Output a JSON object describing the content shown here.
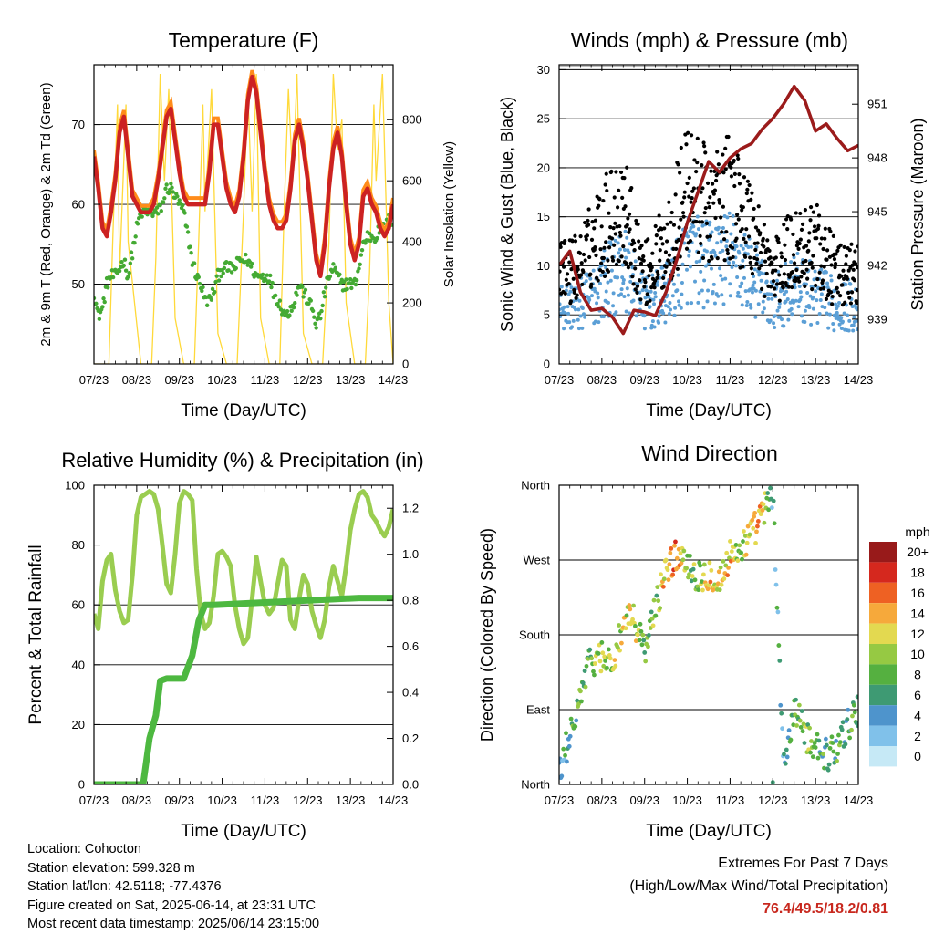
{
  "panels": {
    "temperature": {
      "title": "Temperature (F)",
      "left_axis_label": "2m & 9m T (Red, Orange) & 2m Td (Green)",
      "right_axis_label": "Solar Insolation (Yellow)",
      "x_axis_label": "Time (Day/UTC)"
    },
    "winds": {
      "title": "Winds (mph) & Pressure (mb)",
      "left_axis_label": "Sonic Wind & Gust (Blue, Black)",
      "right_axis_label": "Station Pressure (Maroon)",
      "x_axis_label": "Time (Day/UTC)"
    },
    "humidity": {
      "title": "Relative Humidity (%) & Precipitation (in)",
      "left_axis_label": "Percent & Total Rainfall",
      "x_axis_label": "Time (Day/UTC)"
    },
    "direction": {
      "title": "Wind Direction",
      "left_axis_label": "Direction (Colored By Speed)",
      "x_axis_label": "Time (Day/UTC)",
      "colorbar_title": "mph"
    }
  },
  "info": {
    "location": "Location: Cohocton",
    "elevation": "Station elevation: 599.328 m",
    "latlon": "Station lat/lon: 42.5118; -77.4376",
    "created": "Figure created on Sat, 2025-06-14, at 23:31 UTC",
    "recent": "Most recent data timestamp: 2025/06/14 23:15:00"
  },
  "extremes": {
    "line1": "Extremes For Past 7 Days",
    "line2": "(High/Low/Max Wind/Total Precipitation)",
    "values": "76.4/49.5/18.2/0.81"
  },
  "colors": {
    "temp2m": "#cc2222",
    "temp9m": "#ff8c1a",
    "dewpoint": "#44aa33",
    "solar": "#ffd93a",
    "wind": "#5b9fd6",
    "gust": "#000000",
    "pressure": "#9b1b1b",
    "rh": "#9acd50",
    "precip": "#4db840",
    "extremes": "#c8281e"
  },
  "chart_data": [
    {
      "type": "line",
      "name": "temperature",
      "x_ticks": [
        "07/23",
        "08/23",
        "09/23",
        "10/23",
        "11/23",
        "12/23",
        "13/23",
        "14/23"
      ],
      "ylim_left": [
        40,
        77.5
      ],
      "yticks_left": [
        50,
        60,
        70
      ],
      "ylim_right": [
        0,
        980
      ],
      "yticks_right": [
        0,
        200,
        400,
        600,
        800
      ],
      "series": [
        {
          "name": "2m T",
          "axis": "left",
          "x": [
            0,
            0.1,
            0.2,
            0.3,
            0.4,
            0.5,
            0.6,
            0.7,
            0.8,
            0.9,
            1.0,
            1.1,
            1.2,
            1.3,
            1.4,
            1.5,
            1.6,
            1.7,
            1.8,
            1.9,
            2.0,
            2.1,
            2.2,
            2.3,
            2.4,
            2.5,
            2.6,
            2.7,
            2.8,
            2.9,
            3.0,
            3.1,
            3.2,
            3.3,
            3.4,
            3.5,
            3.6,
            3.7,
            3.8,
            3.9,
            4.0,
            4.1,
            4.2,
            4.3,
            4.4,
            4.5,
            4.6,
            4.7,
            4.8,
            4.9,
            5.0,
            5.1,
            5.2,
            5.3,
            5.4,
            5.5,
            5.6,
            5.7,
            5.8,
            5.9,
            6.0,
            6.1,
            6.2,
            6.3,
            6.4,
            6.5,
            6.6,
            6.7,
            6.8,
            6.9,
            7.0
          ],
          "y": [
            66,
            62,
            57,
            56,
            59,
            63,
            69,
            71,
            66,
            61,
            60,
            59,
            59,
            59,
            60,
            63,
            67,
            71,
            72,
            68,
            64,
            61,
            60,
            60,
            60,
            60,
            60,
            64,
            70,
            70,
            66,
            62,
            60,
            59,
            61,
            66,
            73,
            76,
            74,
            69,
            64,
            60,
            58,
            57,
            57,
            58,
            62,
            68,
            70,
            67,
            63,
            58,
            53,
            51,
            55,
            62,
            67,
            69,
            66,
            60,
            55,
            53,
            55,
            61,
            62,
            60,
            59,
            57,
            56,
            57,
            60
          ]
        },
        {
          "name": "9m T",
          "axis": "left",
          "x": [
            0,
            0.5,
            1.0,
            1.5,
            2.0,
            2.5,
            3.0,
            3.5,
            4.0,
            4.5,
            5.0,
            5.5,
            6.0,
            6.5,
            7.0
          ],
          "y": [
            66,
            63,
            60,
            62,
            64,
            60,
            66,
            65,
            64,
            58,
            63,
            59,
            55,
            60,
            60
          ]
        },
        {
          "name": "2m Td",
          "axis": "left",
          "x": [
            0,
            0.1,
            0.2,
            0.3,
            0.4,
            0.5,
            0.6,
            0.7,
            0.8,
            0.9,
            1.0,
            1.1,
            1.2,
            1.3,
            1.4,
            1.5,
            1.6,
            1.7,
            1.8,
            1.9,
            2.0,
            2.1,
            2.2,
            2.3,
            2.4,
            2.5,
            2.6,
            2.7,
            2.8,
            2.9,
            3.0,
            3.1,
            3.2,
            3.3,
            3.4,
            3.5,
            3.6,
            3.7,
            3.8,
            3.9,
            4.0,
            4.1,
            4.2,
            4.3,
            4.4,
            4.5,
            4.6,
            4.7,
            4.8,
            4.9,
            5.0,
            5.1,
            5.2,
            5.3,
            5.4,
            5.5,
            5.6,
            5.7,
            5.8,
            5.9,
            6.0,
            6.1,
            6.2,
            6.3,
            6.4,
            6.5,
            6.6,
            6.7,
            6.8,
            6.9,
            7.0
          ],
          "y": [
            49,
            46,
            47,
            50,
            51,
            51,
            52,
            53,
            51,
            54,
            57,
            59,
            59,
            59,
            59,
            59,
            60,
            62,
            62,
            61,
            60,
            59,
            56,
            53,
            51,
            50,
            48,
            48,
            49,
            51,
            52,
            52,
            52,
            52,
            53,
            53,
            53,
            52,
            51,
            51,
            51,
            51,
            49,
            48,
            47,
            46,
            47,
            48,
            50,
            49,
            48,
            47,
            45,
            46,
            49,
            51,
            52,
            51,
            50,
            50,
            50,
            50,
            52,
            55,
            56,
            56,
            56,
            57,
            57,
            58,
            58
          ]
        },
        {
          "name": "Solar Insolation",
          "axis": "right",
          "x": [
            0,
            0.35,
            0.45,
            0.55,
            0.6,
            0.75,
            0.8,
            0.95,
            1.1,
            1.35,
            1.45,
            1.55,
            1.65,
            1.75,
            1.9,
            2.1,
            2.35,
            2.45,
            2.55,
            2.6,
            2.75,
            2.9,
            3.1,
            3.35,
            3.5,
            3.6,
            3.7,
            3.8,
            3.9,
            4.1,
            4.35,
            4.45,
            4.55,
            4.65,
            4.75,
            4.9,
            5.1,
            5.35,
            5.5,
            5.6,
            5.7,
            5.8,
            5.9,
            6.1,
            6.35,
            6.45,
            6.55,
            6.6,
            6.75,
            6.9,
            7.0
          ],
          "y": [
            0,
            0,
            450,
            850,
            300,
            850,
            400,
            200,
            0,
            0,
            350,
            950,
            600,
            900,
            150,
            0,
            0,
            400,
            850,
            500,
            900,
            100,
            0,
            0,
            500,
            900,
            500,
            950,
            150,
            0,
            0,
            500,
            900,
            600,
            950,
            100,
            0,
            0,
            400,
            950,
            700,
            800,
            200,
            0,
            0,
            300,
            850,
            600,
            950,
            200,
            0
          ]
        }
      ]
    },
    {
      "type": "scatter",
      "name": "winds",
      "x_ticks": [
        "07/23",
        "08/23",
        "09/23",
        "10/23",
        "11/23",
        "12/23",
        "13/23",
        "14/23"
      ],
      "ylim_left": [
        0,
        30.5
      ],
      "yticks_left": [
        0,
        5,
        10,
        15,
        20,
        25,
        30
      ],
      "ylim_right": [
        936.5,
        953.2
      ],
      "yticks_right": [
        939,
        942,
        945,
        948,
        951
      ],
      "series": [
        {
          "name": "Sonic Wind",
          "axis": "left",
          "x": [
            0,
            0.5,
            1.0,
            1.5,
            2.0,
            2.5,
            3.0,
            3.5,
            4.0,
            4.5,
            5.0,
            5.5,
            6.0,
            6.5,
            7.0
          ],
          "y": [
            6,
            6,
            8,
            10,
            6,
            7,
            11,
            10,
            11,
            9,
            6,
            8,
            7,
            6,
            6
          ]
        },
        {
          "name": "Gust",
          "axis": "left",
          "x": [
            0,
            0.5,
            1.0,
            1.5,
            2.0,
            2.5,
            3.0,
            3.5,
            4.0,
            4.5,
            5.0,
            5.5,
            6.0,
            6.5,
            7.0
          ],
          "y": [
            9,
            10,
            14,
            16,
            9,
            12,
            18,
            16,
            17,
            14,
            9,
            12,
            12,
            9,
            9
          ]
        },
        {
          "name": "Station Pressure",
          "axis": "right",
          "x": [
            0,
            0.25,
            0.5,
            0.75,
            1.0,
            1.25,
            1.5,
            1.75,
            2.0,
            2.25,
            2.5,
            2.75,
            3.0,
            3.25,
            3.5,
            3.75,
            4.0,
            4.25,
            4.5,
            4.75,
            5.0,
            5.25,
            5.5,
            5.75,
            6.0,
            6.25,
            6.5,
            6.75,
            7.0
          ],
          "y": [
            942,
            942.8,
            940.5,
            939.5,
            939.6,
            939.1,
            938.2,
            939.5,
            939.4,
            939.2,
            940.5,
            942.3,
            944.4,
            946.1,
            947.8,
            947.2,
            948.0,
            948.5,
            948.8,
            949.6,
            950.2,
            951.0,
            952.0,
            951.2,
            949.5,
            949.9,
            949.1,
            948.4,
            948.7
          ]
        }
      ]
    },
    {
      "type": "line",
      "name": "humidity",
      "x_ticks": [
        "07/23",
        "08/23",
        "09/23",
        "10/23",
        "11/23",
        "12/23",
        "13/23",
        "14/23"
      ],
      "ylim_left": [
        0,
        100
      ],
      "yticks_left": [
        0,
        20,
        40,
        60,
        80,
        100
      ],
      "ylim_right": [
        0,
        1.3
      ],
      "yticks_right": [
        0.0,
        0.2,
        0.4,
        0.6,
        0.8,
        1.0,
        1.2
      ],
      "series": [
        {
          "name": "Relative Humidity",
          "axis": "left",
          "x": [
            0,
            0.1,
            0.2,
            0.3,
            0.4,
            0.5,
            0.6,
            0.7,
            0.8,
            0.9,
            1.0,
            1.1,
            1.2,
            1.3,
            1.4,
            1.5,
            1.6,
            1.7,
            1.8,
            1.9,
            2.0,
            2.1,
            2.2,
            2.3,
            2.4,
            2.5,
            2.6,
            2.7,
            2.8,
            2.9,
            3.0,
            3.1,
            3.2,
            3.3,
            3.4,
            3.5,
            3.6,
            3.7,
            3.8,
            3.9,
            4.0,
            4.1,
            4.2,
            4.3,
            4.4,
            4.5,
            4.6,
            4.7,
            4.8,
            4.9,
            5.0,
            5.1,
            5.2,
            5.3,
            5.4,
            5.5,
            5.6,
            5.7,
            5.8,
            5.9,
            6.0,
            6.1,
            6.2,
            6.3,
            6.4,
            6.5,
            6.6,
            6.7,
            6.8,
            6.9,
            7.0
          ],
          "y": [
            57,
            52,
            68,
            75,
            77,
            65,
            58,
            54,
            55,
            70,
            90,
            96,
            97,
            98,
            97,
            92,
            80,
            67,
            64,
            77,
            94,
            98,
            97,
            95,
            72,
            57,
            52,
            54,
            63,
            77,
            78,
            76,
            73,
            60,
            52,
            47,
            49,
            62,
            76,
            68,
            60,
            57,
            59,
            67,
            75,
            73,
            55,
            52,
            62,
            70,
            67,
            58,
            53,
            49,
            55,
            66,
            73,
            68,
            63,
            73,
            85,
            92,
            97,
            98,
            96,
            90,
            88,
            85,
            83,
            86,
            92
          ]
        },
        {
          "name": "Total Precipitation",
          "axis": "right",
          "x": [
            0,
            1.15,
            1.3,
            1.45,
            1.55,
            1.7,
            2.1,
            2.3,
            2.45,
            2.6,
            2.8,
            6.2,
            7.0
          ],
          "y": [
            0,
            0,
            0.2,
            0.3,
            0.45,
            0.46,
            0.46,
            0.56,
            0.71,
            0.78,
            0.78,
            0.81,
            0.81
          ]
        }
      ]
    },
    {
      "type": "scatter",
      "name": "direction",
      "x_ticks": [
        "07/23",
        "08/23",
        "09/23",
        "10/23",
        "11/23",
        "12/23",
        "13/23",
        "14/23"
      ],
      "ytick_labels": [
        "North",
        "East",
        "South",
        "West",
        "North"
      ],
      "ytick_values": [
        0,
        90,
        180,
        270,
        360
      ],
      "ylim": [
        0,
        360
      ],
      "colorbar_labels": [
        "0",
        "2",
        "4",
        "6",
        "8",
        "10",
        "12",
        "14",
        "16",
        "18",
        "20+"
      ],
      "colorbar_colors": [
        "#c6e9f6",
        "#80c1ea",
        "#4e94cc",
        "#3e9a73",
        "#55b040",
        "#96c943",
        "#e3d950",
        "#f6a93b",
        "#ee6123",
        "#d5281e",
        "#981a1a"
      ],
      "series": [
        {
          "name": "Direction",
          "x": [
            0,
            0.25,
            0.5,
            0.75,
            1.0,
            1.25,
            1.5,
            1.75,
            2.0,
            2.25,
            2.5,
            2.75,
            3.0,
            3.25,
            3.5,
            3.75,
            4.0,
            4.25,
            4.5,
            4.75,
            5.0,
            5.25,
            5.5,
            5.75,
            6.0,
            6.25,
            6.5,
            6.75,
            7.0
          ],
          "y": [
            10,
            60,
            110,
            150,
            155,
            145,
            190,
            200,
            160,
            210,
            260,
            275,
            270,
            250,
            255,
            245,
            275,
            285,
            300,
            325,
            350,
            20,
            90,
            60,
            50,
            35,
            45,
            70,
            90
          ],
          "speed": [
            4,
            6,
            7,
            9,
            10,
            11,
            11,
            12,
            8,
            9,
            14,
            16,
            9,
            8,
            13,
            12,
            13,
            9,
            12,
            14,
            5,
            4,
            8,
            9,
            7,
            6,
            8,
            7,
            7
          ]
        }
      ]
    }
  ]
}
